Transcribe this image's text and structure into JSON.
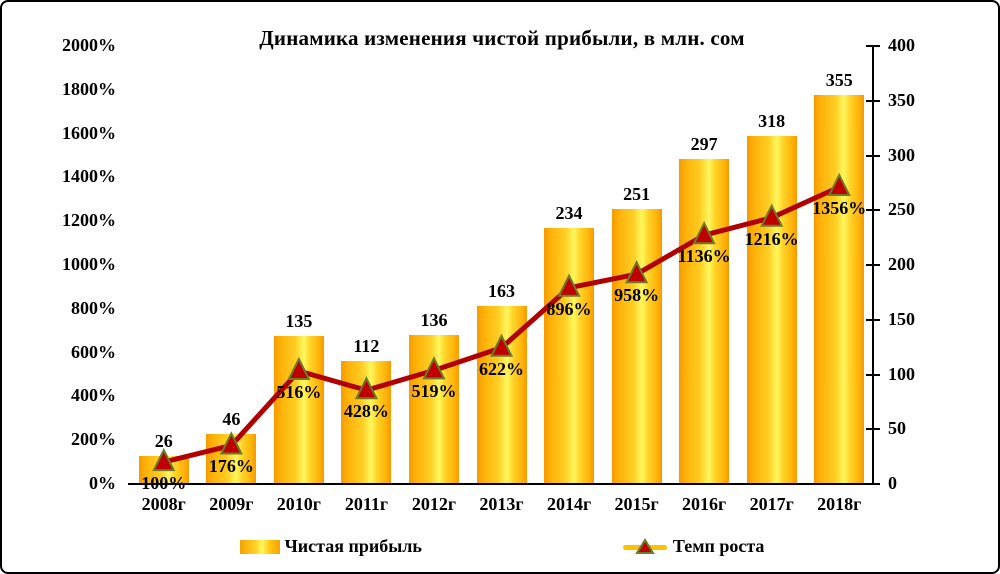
{
  "title": "Динамика изменения чистой прибыли, в млн. сом",
  "chart_data": {
    "type": "bar+line combo",
    "title": "Динамика изменения чистой прибыли, в млн. сом",
    "categories": [
      "2008г",
      "2009г",
      "2010г",
      "2011г",
      "2012г",
      "2013г",
      "2014г",
      "2015г",
      "2016г",
      "2017г",
      "2018г"
    ],
    "series": [
      {
        "name": "Чистая прибыль",
        "type": "bar",
        "axis": "right",
        "values": [
          26,
          46,
          135,
          112,
          136,
          163,
          234,
          251,
          297,
          318,
          355
        ],
        "data_labels": [
          "26",
          "46",
          "135",
          "112",
          "136",
          "163",
          "234",
          "251",
          "297",
          "318",
          "355"
        ]
      },
      {
        "name": "Темп роста",
        "type": "line",
        "axis": "left",
        "values": [
          100,
          176,
          516,
          428,
          519,
          622,
          896,
          958,
          1136,
          1216,
          1356
        ],
        "data_labels": [
          "100%",
          "176%",
          "516%",
          "428%",
          "519%",
          "622%",
          "896%",
          "958%",
          "1136%",
          "1216%",
          "1356%"
        ]
      }
    ],
    "left_axis": {
      "min": 0,
      "max": 2000,
      "step": 200,
      "tick_labels": [
        "0%",
        "200%",
        "400%",
        "600%",
        "800%",
        "1000%",
        "1200%",
        "1400%",
        "1600%",
        "1800%",
        "2000%"
      ]
    },
    "right_axis": {
      "min": 0,
      "max": 400,
      "step": 50,
      "tick_labels": [
        "0",
        "50",
        "100",
        "150",
        "200",
        "250",
        "300",
        "350",
        "400"
      ]
    },
    "grid": "off",
    "legend_position": "bottom",
    "colors": {
      "bar_edge": "#F59B00",
      "bar_center": "#FFF75E",
      "line": "#B00000",
      "marker_fill": "#C00000",
      "marker_stroke": "#6C7C28",
      "legend_line": "#FFC000",
      "axis": "#000000",
      "text": "#000000"
    }
  },
  "legend": {
    "items": [
      {
        "label": "Чистая прибыль",
        "swatch": "gradient-gold-bar"
      },
      {
        "label": "Темп роста",
        "swatch": "gold-line-red-triangle"
      }
    ]
  }
}
